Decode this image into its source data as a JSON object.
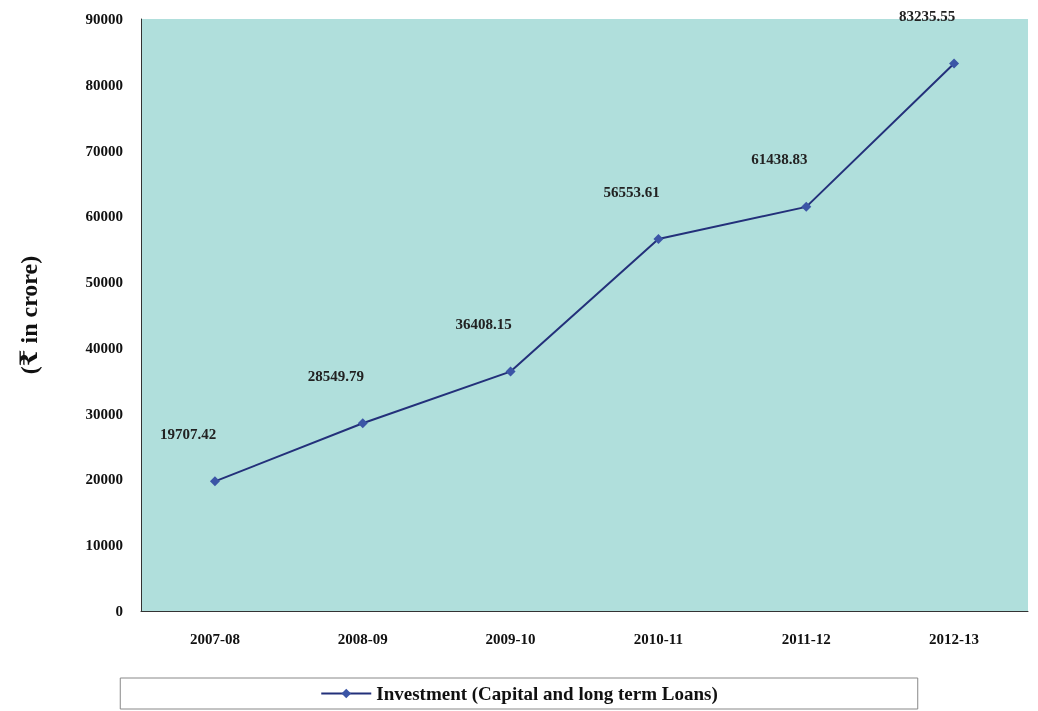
{
  "chart_data": {
    "type": "line",
    "ylabel": "(₹ in crore)",
    "categories": [
      "2007-08",
      "2008-09",
      "2009-10",
      "2010-11",
      "2011-12",
      "2012-13"
    ],
    "series": [
      {
        "name": "Investment (Capital and long term Loans)",
        "color": "#23307a",
        "values": [
          19707.42,
          28549.79,
          36408.15,
          56553.61,
          61438.83,
          83235.55
        ]
      }
    ],
    "ylim": [
      0,
      90000
    ],
    "yticks": [
      0,
      10000,
      20000,
      30000,
      40000,
      50000,
      60000,
      70000,
      80000,
      90000
    ],
    "data_labels": true,
    "grid": false,
    "legend": "bottom",
    "marker": "diamond",
    "line_style": "solid"
  }
}
